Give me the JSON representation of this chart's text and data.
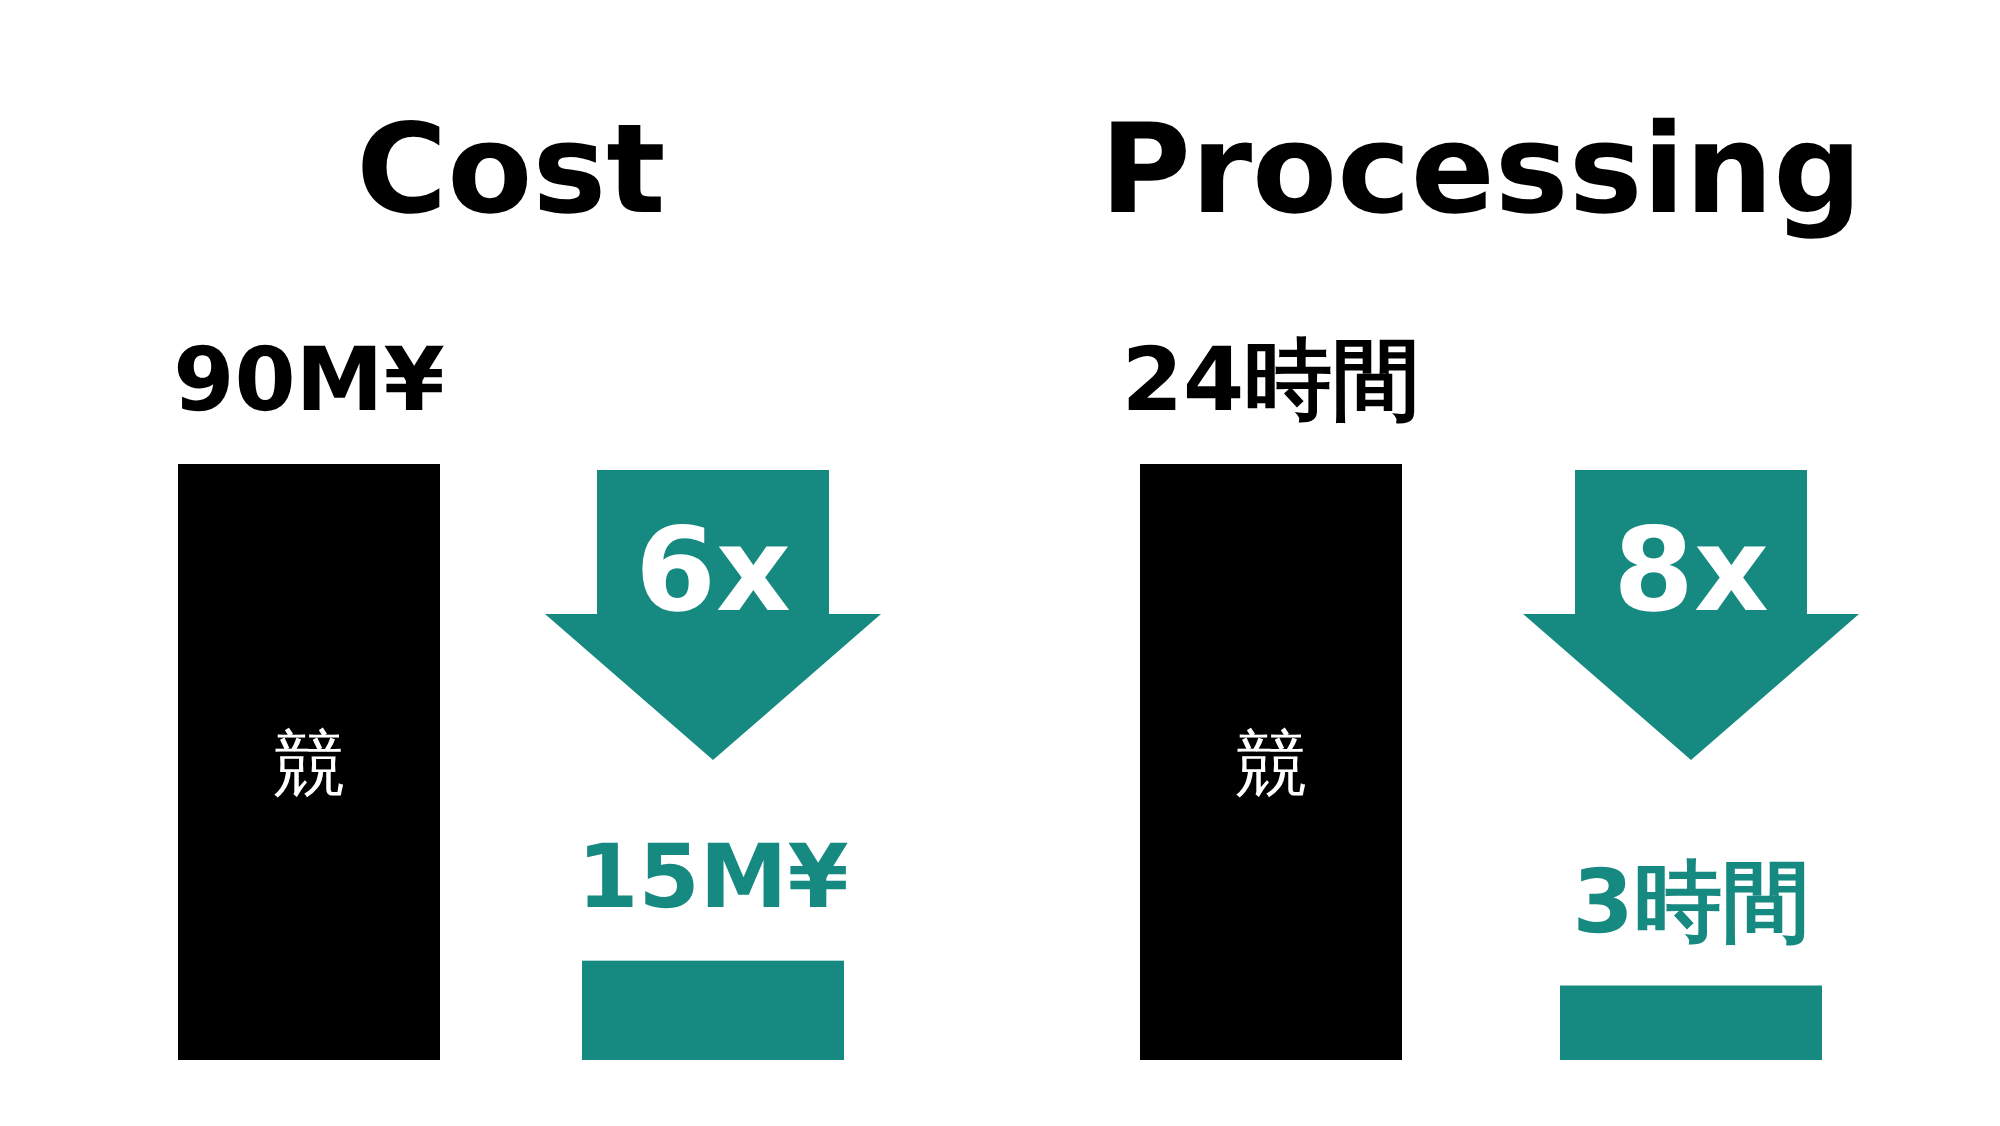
{
  "chart_data": [
    {
      "type": "bar",
      "title": "Cost",
      "categories": [
        "競",
        null
      ],
      "values": [
        90,
        15
      ],
      "colors": [
        "#000000",
        "#168a80"
      ],
      "value_labels": [
        "90M¥",
        "15M¥"
      ],
      "annotations": [
        "6x"
      ]
    },
    {
      "type": "bar",
      "title": "Processing",
      "categories": [
        "競",
        null
      ],
      "values": [
        24,
        3
      ],
      "colors": [
        "#000000",
        "#168a80"
      ],
      "value_labels": [
        "24時間",
        "3時間"
      ],
      "annotations": [
        "8x"
      ]
    }
  ]
}
